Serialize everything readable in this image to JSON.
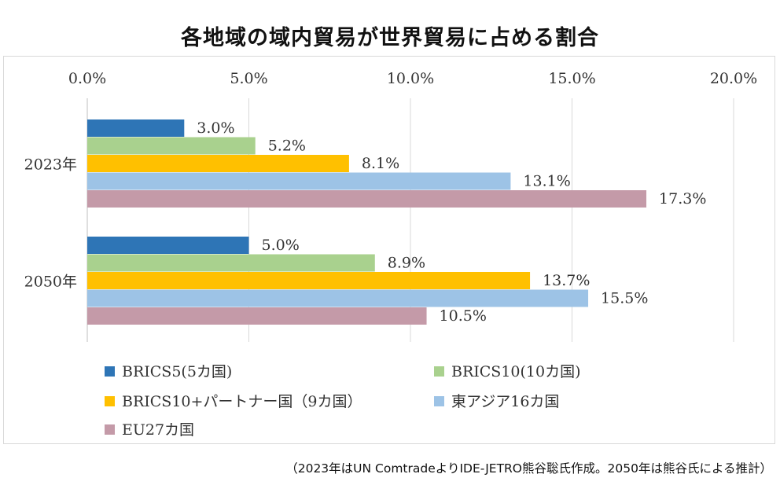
{
  "title": "各地域の域内貿易が世界貿易に占める割合",
  "source_note": "（2023年はUN ComtradeよりIDE-JETRO熊谷聡氏作成。2050年は熊谷氏による推計）",
  "chart_data": {
    "type": "bar",
    "orientation": "horizontal",
    "title": "各地域の域内貿易が世界貿易に占める割合",
    "categories": [
      "2023年",
      "2050年"
    ],
    "x_axis": {
      "position": "top",
      "range": [
        0,
        20
      ],
      "unit": "%",
      "tick_labels": [
        "0.0%",
        "5.0%",
        "10.0%",
        "15.0%",
        "20.0%"
      ],
      "tick_values": [
        0,
        5,
        10,
        15,
        20
      ],
      "gridlines": true
    },
    "legend_position": "bottom",
    "series": [
      {
        "name": "BRICS5(5カ国)",
        "color": "#2e75b6",
        "values": [
          3.0,
          5.0
        ],
        "labels": [
          "3.0%",
          "5.0%"
        ]
      },
      {
        "name": "BRICS10(10カ国)",
        "color": "#a9d18e",
        "values": [
          5.2,
          8.9
        ],
        "labels": [
          "5.2%",
          "8.9%"
        ]
      },
      {
        "name": "BRICS10+パートナー国（9カ国）",
        "color": "#ffc000",
        "values": [
          8.1,
          13.7
        ],
        "labels": [
          "8.1%",
          "13.7%"
        ]
      },
      {
        "name": "東アジア16カ国",
        "color": "#9dc3e6",
        "values": [
          13.1,
          15.5
        ],
        "labels": [
          "13.1%",
          "15.5%"
        ]
      },
      {
        "name": "EU27カ国",
        "color": "#c49aa8",
        "values": [
          17.3,
          10.5
        ],
        "labels": [
          "17.3%",
          "10.5%"
        ]
      }
    ]
  }
}
